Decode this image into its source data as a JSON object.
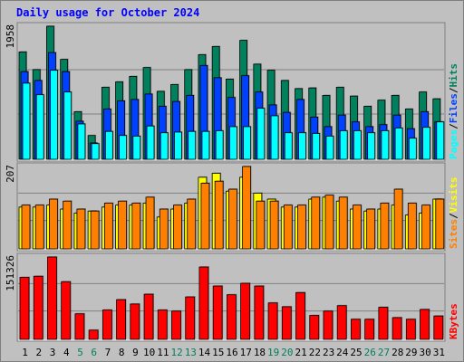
{
  "chart_data": [
    {
      "type": "bar",
      "title": "Daily usage for October 2024",
      "ylabel_max": "1958",
      "legend": [
        {
          "name": "Pages",
          "color": "#00ffff"
        },
        {
          "name": "Files",
          "color": "#0040ff"
        },
        {
          "name": "Hits",
          "color": "#00805c"
        }
      ],
      "separator": "/",
      "ylim": [
        0,
        1958
      ],
      "categories": [
        "1",
        "2",
        "3",
        "4",
        "5",
        "6",
        "7",
        "8",
        "9",
        "10",
        "11",
        "12",
        "13",
        "14",
        "15",
        "16",
        "17",
        "18",
        "19",
        "20",
        "21",
        "22",
        "23",
        "24",
        "25",
        "26",
        "27",
        "28",
        "29",
        "30",
        "31"
      ],
      "weekend_days": [
        "5",
        "6",
        "12",
        "13",
        "19",
        "20",
        "26",
        "27"
      ],
      "series": [
        {
          "name": "Hits",
          "color": "#00805c",
          "values": [
            1580,
            1320,
            1958,
            1470,
            700,
            350,
            1060,
            1140,
            1220,
            1350,
            1000,
            1100,
            1320,
            1540,
            1660,
            1180,
            1750,
            1400,
            1310,
            1160,
            1040,
            1050,
            940,
            1060,
            930,
            780,
            870,
            940,
            740,
            990,
            890
          ]
        },
        {
          "name": "Files",
          "color": "#0040ff",
          "values": [
            1290,
            1160,
            1570,
            1290,
            560,
            240,
            740,
            860,
            880,
            960,
            780,
            850,
            940,
            1380,
            1200,
            910,
            1230,
            990,
            800,
            690,
            880,
            620,
            480,
            650,
            550,
            480,
            510,
            650,
            450,
            700,
            550
          ]
        },
        {
          "name": "Pages",
          "color": "#00ffff",
          "values": [
            1120,
            950,
            1310,
            990,
            520,
            230,
            410,
            350,
            340,
            490,
            390,
            400,
            410,
            410,
            420,
            480,
            480,
            750,
            640,
            390,
            390,
            380,
            340,
            420,
            420,
            390,
            420,
            460,
            310,
            470,
            550
          ]
        }
      ]
    },
    {
      "type": "bar",
      "ylabel_max": "207",
      "legend": [
        {
          "name": "Sites",
          "color": "#ff8000"
        },
        {
          "name": "Visits",
          "color": "#ffff00"
        }
      ],
      "separator": "/",
      "ylim": [
        0,
        207
      ],
      "categories": [
        "1",
        "2",
        "3",
        "4",
        "5",
        "6",
        "7",
        "8",
        "9",
        "10",
        "11",
        "12",
        "13",
        "14",
        "15",
        "16",
        "17",
        "18",
        "19",
        "20",
        "21",
        "22",
        "23",
        "24",
        "25",
        "26",
        "27",
        "28",
        "29",
        "30",
        "31"
      ],
      "series": [
        {
          "name": "Visits",
          "color": "#ffff00",
          "values": [
            105,
            105,
            110,
            100,
            90,
            95,
            105,
            110,
            110,
            115,
            80,
            100,
            115,
            180,
            190,
            145,
            180,
            140,
            125,
            105,
            105,
            125,
            130,
            120,
            100,
            95,
            100,
            110,
            85,
            90,
            125
          ]
        },
        {
          "name": "Sites",
          "color": "#ff8000",
          "values": [
            110,
            110,
            125,
            120,
            100,
            95,
            115,
            120,
            115,
            130,
            100,
            110,
            125,
            165,
            170,
            150,
            207,
            120,
            120,
            110,
            110,
            130,
            135,
            130,
            110,
            100,
            115,
            150,
            115,
            110,
            125
          ]
        }
      ]
    },
    {
      "type": "bar",
      "ylabel_max": "151326",
      "legend": [
        {
          "name": "KBytes",
          "color": "#ff0000"
        }
      ],
      "ylim": [
        0,
        151326
      ],
      "categories": [
        "1",
        "2",
        "3",
        "4",
        "5",
        "6",
        "7",
        "8",
        "9",
        "10",
        "11",
        "12",
        "13",
        "14",
        "15",
        "16",
        "17",
        "18",
        "19",
        "20",
        "21",
        "22",
        "23",
        "24",
        "25",
        "26",
        "27",
        "28",
        "29",
        "30",
        "31"
      ],
      "series": [
        {
          "name": "KBytes",
          "color": "#ff0000",
          "values": [
            114000,
            116000,
            151326,
            106000,
            47000,
            17000,
            54000,
            73000,
            65000,
            83000,
            54000,
            52000,
            78000,
            133000,
            98000,
            82000,
            103000,
            98000,
            67000,
            60000,
            86000,
            44000,
            52000,
            62000,
            37000,
            37000,
            59000,
            40000,
            37000,
            55000,
            43000
          ]
        }
      ]
    }
  ],
  "colors": {
    "background": "#c0c0c0",
    "plot_background": "#c0c0c0",
    "title": "#0000ff",
    "weekday_label": "#000000",
    "weekend_label": "#00805c"
  }
}
